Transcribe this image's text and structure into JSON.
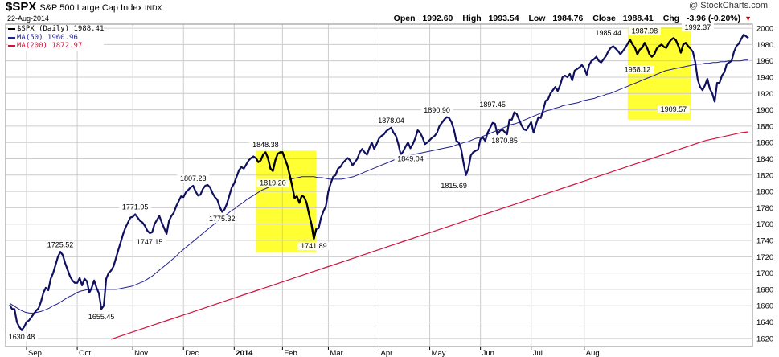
{
  "header": {
    "ticker": "$SPX",
    "name": "S&P 500 Large Cap Index",
    "exchange": "INDX",
    "date": "22-Aug-2014",
    "watermark": "@ StockCharts.com",
    "open_label": "Open",
    "open": "1992.60",
    "high_label": "High",
    "high": "1993.54",
    "low_label": "Low",
    "low": "1984.76",
    "close_label": "Close",
    "close": "1988.41",
    "chg_label": "Chg",
    "chg": "-3.96 (-0.20%)",
    "chg_arrow": "▼"
  },
  "legend": [
    {
      "label": "$SPX (Daily) 1988.41",
      "color": "#000000"
    },
    {
      "label": "MA(50) 1960.96",
      "color": "#1f1f8f"
    },
    {
      "label": "MA(200) 1872.97",
      "color": "#d2143c"
    }
  ],
  "colors": {
    "price": "#101060",
    "ma50": "#1f1f8f",
    "ma200": "#d2143c",
    "highlight": "#ffff33",
    "grid": "#cccccc"
  },
  "chart_data": {
    "type": "line",
    "ylim": [
      1610,
      2005
    ],
    "yticks": [
      1620,
      1640,
      1660,
      1680,
      1700,
      1720,
      1740,
      1760,
      1780,
      1800,
      1820,
      1840,
      1860,
      1880,
      1900,
      1920,
      1940,
      1960,
      1980,
      2000
    ],
    "months": [
      "Sep",
      "Oct",
      "Nov",
      "Dec",
      "2014",
      "Feb",
      "Mar",
      "Apr",
      "May",
      "Jun",
      "Jul",
      "Aug"
    ],
    "month_start_index": [
      7,
      28,
      51,
      72,
      93,
      113,
      132,
      153,
      174,
      195,
      216,
      238
    ],
    "series": [
      {
        "name": "$SPX (Daily)",
        "values": [
          1661,
          1656,
          1656,
          1640,
          1634,
          1630,
          1634,
          1640,
          1642,
          1646,
          1650,
          1654,
          1657,
          1665,
          1676,
          1682,
          1679,
          1693,
          1700,
          1710,
          1720,
          1726,
          1722,
          1712,
          1704,
          1696,
          1691,
          1688,
          1688,
          1694,
          1685,
          1693,
          1690,
          1676,
          1682,
          1691,
          1682,
          1675,
          1656,
          1660,
          1693,
          1700,
          1703,
          1708,
          1718,
          1728,
          1738,
          1748,
          1756,
          1762,
          1768,
          1769,
          1772,
          1768,
          1764,
          1762,
          1758,
          1752,
          1749,
          1750,
          1760,
          1765,
          1770,
          1762,
          1755,
          1748,
          1764,
          1770,
          1774,
          1782,
          1788,
          1794,
          1793,
          1799,
          1802,
          1805,
          1807,
          1800,
          1795,
          1796,
          1803,
          1807,
          1808,
          1805,
          1798,
          1793,
          1790,
          1781,
          1775,
          1778,
          1785,
          1795,
          1805,
          1810,
          1818,
          1826,
          1830,
          1828,
          1833,
          1838,
          1841,
          1843,
          1841,
          1836,
          1838,
          1845,
          1848,
          1841,
          1828,
          1825,
          1838,
          1846,
          1848,
          1848,
          1840,
          1832,
          1820,
          1807,
          1792,
          1794,
          1786,
          1795,
          1793,
          1786,
          1772,
          1760,
          1742,
          1754,
          1755,
          1768,
          1776,
          1782,
          1800,
          1810,
          1818,
          1820,
          1828,
          1830,
          1835,
          1838,
          1841,
          1838,
          1832,
          1836,
          1840,
          1848,
          1852,
          1848,
          1845,
          1853,
          1860,
          1852,
          1858,
          1865,
          1868,
          1870,
          1874,
          1876,
          1878,
          1872,
          1868,
          1858,
          1845,
          1849,
          1855,
          1860,
          1853,
          1858,
          1865,
          1875,
          1872,
          1866,
          1858,
          1860,
          1863,
          1866,
          1868,
          1872,
          1880,
          1884,
          1888,
          1891,
          1890,
          1885,
          1876,
          1862,
          1860,
          1852,
          1835,
          1820,
          1828,
          1844,
          1848,
          1850,
          1851,
          1864,
          1866,
          1862,
          1872,
          1878,
          1884,
          1883,
          1870,
          1874,
          1876,
          1873,
          1870,
          1888,
          1888,
          1897,
          1895,
          1888,
          1881,
          1876,
          1875,
          1880,
          1885,
          1872,
          1882,
          1891,
          1890,
          1900,
          1911,
          1913,
          1920,
          1924,
          1928,
          1923,
          1930,
          1940,
          1942,
          1940,
          1944,
          1936,
          1948,
          1950,
          1952,
          1955,
          1951,
          1943,
          1955,
          1960,
          1962,
          1965,
          1960,
          1958,
          1962,
          1966,
          1972,
          1976,
          1978,
          1975,
          1972,
          1968,
          1972,
          1976,
          1981,
          1986,
          1980,
          1976,
          1968,
          1974,
          1976,
          1982,
          1976,
          1968,
          1965,
          1968,
          1975,
          1978,
          1980,
          1977,
          1976,
          1982,
          1986,
          1988,
          1985,
          1978,
          1970,
          1980,
          1982,
          1978,
          1975,
          1971,
          1958,
          1937,
          1928,
          1924,
          1930,
          1938,
          1926,
          1920,
          1910,
          1933,
          1933,
          1942,
          1946,
          1956,
          1958,
          1960,
          1971,
          1978,
          1981,
          1987,
          1992,
          1990,
          1988
        ]
      },
      {
        "name": "MA(50)",
        "values": [
          1663,
          1660,
          1657,
          1654,
          1652,
          1651,
          1651,
          1652,
          1653,
          1655,
          1657,
          1660,
          1662,
          1665,
          1668,
          1671,
          1673,
          1676,
          1678,
          1679,
          1680,
          1680,
          1680,
          1680,
          1680,
          1680,
          1680,
          1680,
          1681,
          1682,
          1683,
          1684,
          1686,
          1688,
          1690,
          1693,
          1696,
          1700,
          1704,
          1708,
          1712,
          1716,
          1720,
          1725,
          1729,
          1733,
          1737,
          1741,
          1745,
          1749,
          1753,
          1757,
          1761,
          1765,
          1769,
          1772,
          1776,
          1779,
          1783,
          1786,
          1790,
          1793,
          1796,
          1799,
          1802,
          1804,
          1806,
          1808,
          1810,
          1812,
          1813,
          1815,
          1816,
          1817,
          1818,
          1818,
          1818,
          1818,
          1817,
          1817,
          1816,
          1815,
          1815,
          1815,
          1815,
          1816,
          1817,
          1818,
          1820,
          1822,
          1824,
          1826,
          1828,
          1830,
          1832,
          1834,
          1836,
          1838,
          1840,
          1841,
          1843,
          1844,
          1845,
          1846,
          1847,
          1848,
          1849,
          1850,
          1851,
          1852,
          1853,
          1854,
          1855,
          1857,
          1858,
          1860,
          1861,
          1863,
          1865,
          1866,
          1868,
          1870,
          1872,
          1874,
          1876,
          1878,
          1880,
          1882,
          1883,
          1885,
          1887,
          1889,
          1891,
          1893,
          1895,
          1897,
          1899,
          1900,
          1902,
          1903,
          1905,
          1906,
          1907,
          1908,
          1909,
          1911,
          1912,
          1913,
          1914,
          1916,
          1917,
          1919,
          1920,
          1922,
          1924,
          1926,
          1928,
          1930,
          1932,
          1934,
          1936,
          1938,
          1940,
          1942,
          1944,
          1946,
          1948,
          1949,
          1950,
          1951,
          1952,
          1953,
          1954,
          1955,
          1956,
          1956,
          1957,
          1957,
          1958,
          1958,
          1959,
          1959,
          1960,
          1960,
          1960,
          1960,
          1961,
          1961
        ]
      },
      {
        "name": "MA(200)",
        "values": [
          1619,
          1622,
          1625,
          1628,
          1631,
          1634,
          1637,
          1640,
          1643,
          1646,
          1649,
          1652,
          1655,
          1658,
          1661,
          1664,
          1667,
          1670,
          1673,
          1676,
          1679,
          1682,
          1685,
          1688,
          1691,
          1694,
          1697,
          1700,
          1703,
          1706,
          1709,
          1712,
          1715,
          1718,
          1721,
          1724,
          1727,
          1730,
          1733,
          1736,
          1739,
          1742,
          1745,
          1748,
          1751,
          1754,
          1757,
          1760,
          1763,
          1766,
          1769,
          1772,
          1775,
          1778,
          1781,
          1784,
          1787,
          1790,
          1793,
          1796,
          1799,
          1802,
          1805,
          1808,
          1811,
          1814,
          1817,
          1820,
          1823,
          1826,
          1829,
          1832,
          1835,
          1838,
          1841,
          1844,
          1847,
          1850,
          1853,
          1856,
          1859,
          1862,
          1864,
          1866,
          1868,
          1870,
          1872,
          1873
        ]
      }
    ],
    "annotations": [
      {
        "label": "1630.48",
        "i": 5,
        "value": 1630.48,
        "pos": "below"
      },
      {
        "label": "1725.52",
        "i": 21,
        "value": 1725.52,
        "pos": "above"
      },
      {
        "label": "1655.45",
        "i": 38,
        "value": 1655.45,
        "pos": "below"
      },
      {
        "label": "1771.95",
        "i": 52,
        "value": 1771.95,
        "pos": "above"
      },
      {
        "label": "1747.15",
        "i": 58,
        "value": 1747.15,
        "pos": "below"
      },
      {
        "label": "1807.23",
        "i": 76,
        "value": 1807.23,
        "pos": "above"
      },
      {
        "label": "1775.32",
        "i": 88,
        "value": 1775.32,
        "pos": "below"
      },
      {
        "label": "1848.38",
        "i": 106,
        "value": 1848.38,
        "pos": "above"
      },
      {
        "label": "1819.20",
        "i": 109,
        "value": 1819.2,
        "pos": "below"
      },
      {
        "label": "1741.89",
        "i": 126,
        "value": 1741.89,
        "pos": "below"
      },
      {
        "label": "1878.04",
        "i": 158,
        "value": 1878.04,
        "pos": "above"
      },
      {
        "label": "1849.04",
        "i": 166,
        "value": 1849.04,
        "pos": "below"
      },
      {
        "label": "1890.90",
        "i": 177,
        "value": 1890.9,
        "pos": "above"
      },
      {
        "label": "1815.69",
        "i": 184,
        "value": 1815.69,
        "pos": "below"
      },
      {
        "label": "1897.45",
        "i": 200,
        "value": 1897.45,
        "pos": "above"
      },
      {
        "label": "1870.85",
        "i": 205,
        "value": 1870.85,
        "pos": "below"
      },
      {
        "label": "1985.44",
        "i": 248,
        "value": 1985.44,
        "pos": "above"
      },
      {
        "label": "1958.12",
        "i": 260,
        "value": 1958.12,
        "pos": "below"
      },
      {
        "label": "1987.98",
        "i": 263,
        "value": 1987.98,
        "pos": "above"
      },
      {
        "label": "1909.57",
        "i": 275,
        "value": 1909.57,
        "pos": "below"
      },
      {
        "label": "1992.37",
        "i": 285,
        "value": 1992.37,
        "pos": "above"
      }
    ],
    "highlight_ranges": [
      {
        "i_start": 102,
        "i_end": 127,
        "y_low": 1725,
        "y_high": 1850
      },
      {
        "i_start": 256,
        "i_end": 282,
        "y_low": 1888,
        "y_high": 2002
      }
    ]
  }
}
